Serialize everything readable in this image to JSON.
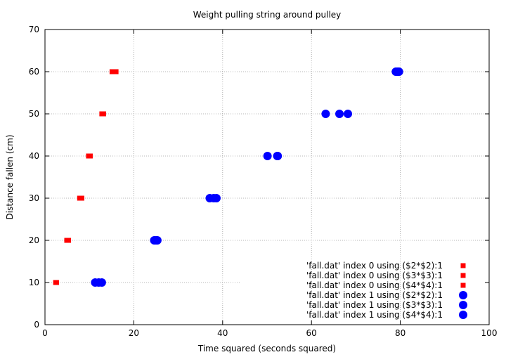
{
  "chart_data": {
    "type": "scatter",
    "title": "Weight pulling string around pulley",
    "xlabel": "Time squared (seconds squared)",
    "ylabel": "Distance fallen (cm)",
    "xlim": [
      0,
      100
    ],
    "ylim": [
      0,
      70
    ],
    "xticks": [
      0,
      20,
      40,
      60,
      80,
      100
    ],
    "yticks": [
      0,
      10,
      20,
      30,
      40,
      50,
      60,
      70
    ],
    "grid": true,
    "legend_position": "bottom-right",
    "series": [
      {
        "name": "'fall.dat' index 0 using ($2*$2):1",
        "marker": "square",
        "color": "#ff0000",
        "points": [
          [
            2.4,
            10
          ],
          [
            4.9,
            20
          ],
          [
            7.8,
            30
          ],
          [
            9.8,
            40
          ],
          [
            12.8,
            50
          ],
          [
            15.1,
            60
          ]
        ]
      },
      {
        "name": "'fall.dat' index 0 using ($3*$3):1",
        "marker": "square",
        "color": "#ff0000",
        "points": [
          [
            2.6,
            10
          ],
          [
            5.1,
            20
          ],
          [
            8.0,
            30
          ],
          [
            10.0,
            40
          ],
          [
            13.0,
            50
          ],
          [
            15.6,
            60
          ]
        ]
      },
      {
        "name": "'fall.dat' index 0 using ($4*$4):1",
        "marker": "square",
        "color": "#ff0000",
        "points": [
          [
            2.5,
            10
          ],
          [
            5.3,
            20
          ],
          [
            8.3,
            30
          ],
          [
            10.2,
            40
          ],
          [
            13.2,
            50
          ],
          [
            16.0,
            60
          ]
        ]
      },
      {
        "name": "'fall.dat' index 1 using ($2*$2):1",
        "marker": "circle",
        "color": "#0000ff",
        "points": [
          [
            11.3,
            10
          ],
          [
            24.6,
            20
          ],
          [
            37.1,
            30
          ],
          [
            50.1,
            40
          ],
          [
            63.2,
            50
          ],
          [
            79.0,
            60
          ]
        ]
      },
      {
        "name": "'fall.dat' index 1 using ($3*$3):1",
        "marker": "circle",
        "color": "#0000ff",
        "points": [
          [
            12.1,
            10
          ],
          [
            25.0,
            20
          ],
          [
            38.0,
            30
          ],
          [
            52.3,
            40
          ],
          [
            66.3,
            50
          ],
          [
            79.4,
            60
          ]
        ]
      },
      {
        "name": "'fall.dat' index 1 using ($4*$4):1",
        "marker": "circle",
        "color": "#0000ff",
        "points": [
          [
            12.8,
            10
          ],
          [
            25.3,
            20
          ],
          [
            38.6,
            30
          ],
          [
            52.4,
            40
          ],
          [
            68.2,
            50
          ],
          [
            79.7,
            60
          ]
        ]
      }
    ]
  }
}
